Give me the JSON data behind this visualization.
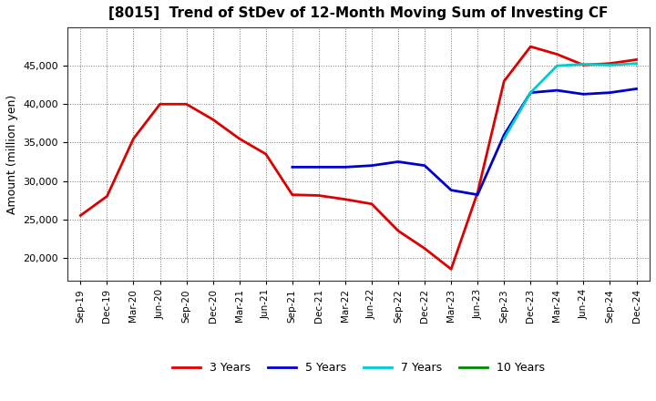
{
  "title": "[8015]  Trend of StDev of 12-Month Moving Sum of Investing CF",
  "ylabel": "Amount (million yen)",
  "background_color": "#ffffff",
  "plot_bg_color": "#ffffff",
  "ylim": [
    17000,
    50000
  ],
  "yticks": [
    20000,
    25000,
    30000,
    35000,
    40000,
    45000
  ],
  "x_labels": [
    "Sep-19",
    "Dec-19",
    "Mar-20",
    "Jun-20",
    "Sep-20",
    "Dec-20",
    "Mar-21",
    "Jun-21",
    "Sep-21",
    "Dec-21",
    "Mar-22",
    "Jun-22",
    "Sep-22",
    "Dec-22",
    "Mar-23",
    "Jun-23",
    "Sep-23",
    "Dec-23",
    "Mar-24",
    "Jun-24",
    "Sep-24",
    "Dec-24"
  ],
  "series": {
    "3 Years": {
      "color": "#dd0000",
      "linewidth": 2.0,
      "x": [
        0,
        1,
        2,
        3,
        4,
        5,
        6,
        7,
        8,
        9,
        10,
        11,
        12,
        13,
        14,
        15,
        16,
        17,
        18,
        19,
        20,
        21
      ],
      "y": [
        25500,
        28000,
        35500,
        40000,
        40000,
        38000,
        35500,
        33500,
        28200,
        28100,
        27600,
        27000,
        23500,
        21200,
        18500,
        28500,
        43000,
        47500,
        46500,
        45100,
        45300,
        45800
      ]
    },
    "5 Years": {
      "color": "#0000cc",
      "linewidth": 2.0,
      "x": [
        8,
        9,
        10,
        11,
        12,
        13,
        14,
        15,
        16,
        17,
        18,
        19,
        20,
        21
      ],
      "y": [
        31800,
        31800,
        31800,
        32000,
        32500,
        32000,
        28800,
        28200,
        36000,
        41500,
        41800,
        41300,
        41500,
        42000
      ]
    },
    "7 Years": {
      "color": "#00cccc",
      "linewidth": 2.0,
      "x": [
        16,
        17,
        18,
        19,
        20,
        21
      ],
      "y": [
        35500,
        41500,
        45000,
        45200,
        45100,
        45300
      ]
    },
    "10 Years": {
      "color": "#008800",
      "linewidth": 2.0,
      "x": [],
      "y": []
    }
  },
  "legend_entries": [
    "3 Years",
    "5 Years",
    "7 Years",
    "10 Years"
  ],
  "legend_colors": [
    "#dd0000",
    "#0000cc",
    "#00cccc",
    "#008800"
  ]
}
